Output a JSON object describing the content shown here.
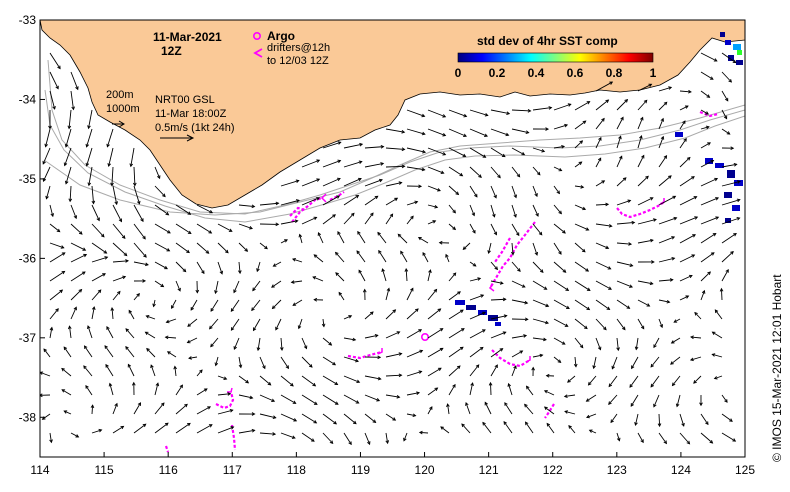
{
  "map": {
    "x_axis": {
      "min": 114,
      "max": 125,
      "ticks": [
        "114",
        "115",
        "116",
        "117",
        "118",
        "119",
        "120",
        "121",
        "122",
        "123",
        "124",
        "125"
      ]
    },
    "y_axis": {
      "min": -38.5,
      "max": -33,
      "ticks": [
        "-33",
        "-34",
        "-35",
        "-36",
        "-37",
        "-38"
      ]
    },
    "land_color": "#fac997",
    "ocean_color": "#ffffff"
  },
  "header": {
    "date": "11-Mar-2021",
    "hour": "12Z",
    "argo_label": "Argo",
    "drifters_line1": "drifters@12h",
    "drifters_line2": "to 12/03 12Z"
  },
  "model_info": {
    "depth1": "200m",
    "depth2": "1000m",
    "product": "NRT00 GSL",
    "valid_time": "11-Mar 18:00Z",
    "scale_text": "0.5m/s (1kt 24h)"
  },
  "colorbar": {
    "title": "std dev of 4hr SST comp",
    "ticks": [
      "0",
      "0.2",
      "0.4",
      "0.6",
      "0.8",
      "1"
    ],
    "colors": [
      "#00007f",
      "#0000ff",
      "#007fff",
      "#00ffff",
      "#7fff7f",
      "#ffff00",
      "#ff7f00",
      "#ff0000",
      "#7f0000"
    ]
  },
  "credit": "© IMOS 15-Mar-2021 12:01 Hobart",
  "colors": {
    "drifter": "#ff00ff",
    "argo": "#ff00ff",
    "isobath": "#aaaaaa",
    "arrow": "#000000"
  }
}
